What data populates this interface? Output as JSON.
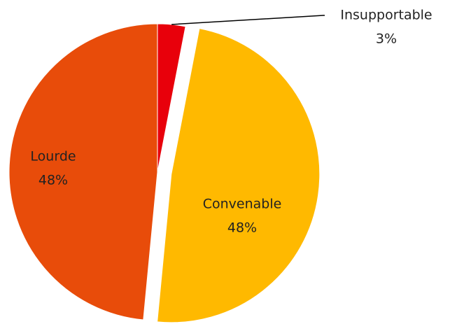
{
  "chart_data": {
    "type": "pie",
    "categories": [
      "Insupportable",
      "Convenable",
      "Lourde"
    ],
    "values": [
      3,
      48,
      48
    ],
    "value_labels": [
      "3%",
      "48%",
      "48%"
    ],
    "colors": [
      "#e8000b",
      "#ffb900",
      "#e84c0a"
    ],
    "exploded": [
      false,
      true,
      false
    ]
  }
}
